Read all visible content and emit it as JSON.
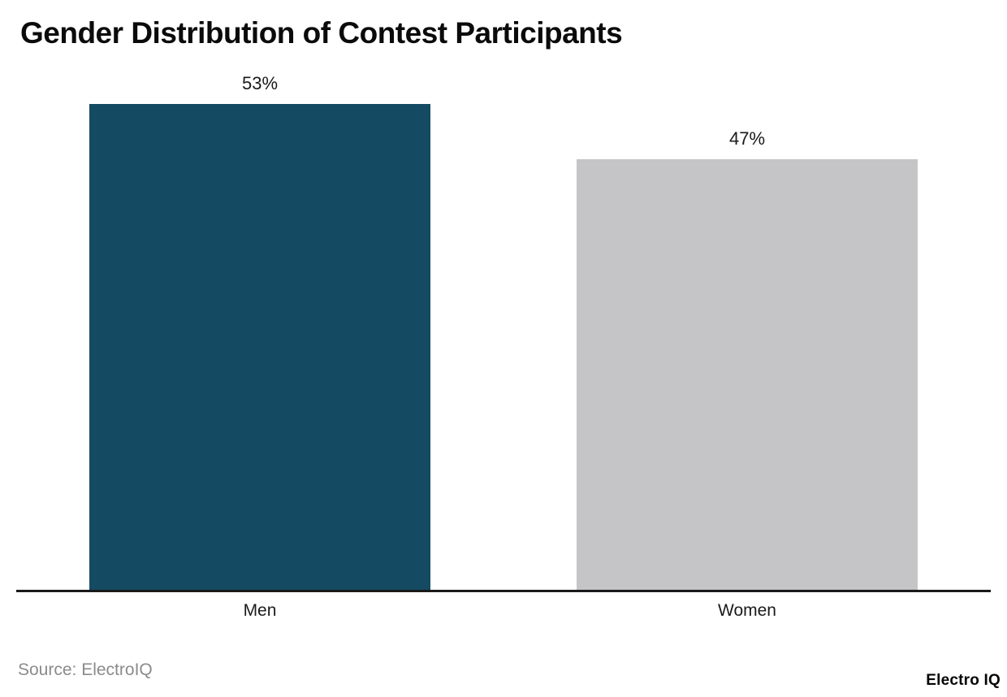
{
  "page": {
    "title": "Gender Distribution of Contest Participants",
    "source_note": "Source: ElectroIQ",
    "brand": "Electro IQ"
  },
  "chart_data": {
    "type": "bar",
    "title": "Gender Distribution of Contest Participants",
    "categories": [
      "Men",
      "Women"
    ],
    "values": [
      53,
      47
    ],
    "value_labels": [
      "53%",
      "47%"
    ],
    "bar_colors": [
      "#154A63",
      "#C5C5C7"
    ],
    "xlabel": "",
    "ylabel": "",
    "ylim": [
      0,
      64
    ],
    "grid": false,
    "legend": "none",
    "axis_line_color": "#1a1a1a",
    "source": "Source: ElectroIQ",
    "watermark": "Electro IQ"
  }
}
